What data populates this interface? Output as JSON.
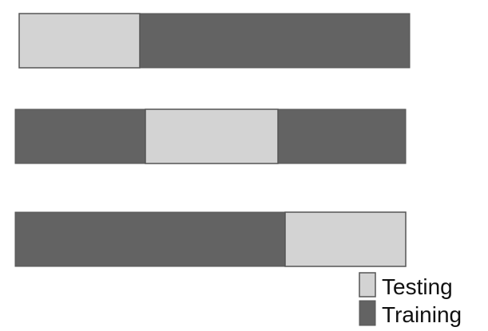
{
  "colors": {
    "testing": "#d3d3d3",
    "training": "#636363",
    "outline": "#555555"
  },
  "folds": [
    {
      "test_start": 0.0,
      "test_end": 0.31
    },
    {
      "test_start": 0.335,
      "test_end": 0.675
    },
    {
      "test_start": 0.695,
      "test_end": 1.0
    }
  ],
  "legend": {
    "testing_label": "Testing",
    "training_label": "Training"
  }
}
